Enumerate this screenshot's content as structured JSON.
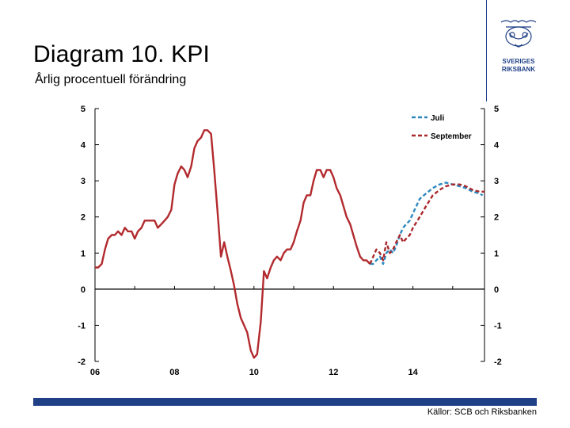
{
  "header": {
    "title": "Diagram 10. KPI",
    "subtitle": "Årlig procentuell förändring"
  },
  "logo": {
    "line1": "SVERIGES",
    "line2": "RIKSBANK"
  },
  "footer": {
    "source": "Källor: SCB och Riksbanken"
  },
  "colors": {
    "brand": "#1f3f86",
    "outcome": "#b22a2e",
    "forecast_juli": "#2e88c0",
    "forecast_september": "#a8282b"
  },
  "chart_data": {
    "type": "line",
    "x_ticks": [
      "06",
      "08",
      "10",
      "12",
      "14"
    ],
    "y_ticks_left": [
      "5",
      "4",
      "3",
      "2",
      "1",
      "0",
      "-1",
      "-2"
    ],
    "y_ticks_right": [
      "5",
      "4",
      "3",
      "2",
      "1",
      "0",
      "-1",
      "-2"
    ],
    "ylim": [
      -2,
      5
    ],
    "xlim": [
      2006.0,
      2015.8
    ],
    "grid": false,
    "legend_position": "top-right",
    "series": [
      {
        "name": "",
        "style": "solid",
        "color": "#b22a2e",
        "points": [
          [
            2006.0,
            0.6
          ],
          [
            2006.08,
            0.6
          ],
          [
            2006.17,
            0.7
          ],
          [
            2006.25,
            1.1
          ],
          [
            2006.33,
            1.4
          ],
          [
            2006.42,
            1.5
          ],
          [
            2006.5,
            1.5
          ],
          [
            2006.58,
            1.6
          ],
          [
            2006.67,
            1.5
          ],
          [
            2006.75,
            1.7
          ],
          [
            2006.83,
            1.6
          ],
          [
            2006.92,
            1.6
          ],
          [
            2007.0,
            1.4
          ],
          [
            2007.08,
            1.6
          ],
          [
            2007.17,
            1.7
          ],
          [
            2007.25,
            1.9
          ],
          [
            2007.33,
            1.9
          ],
          [
            2007.42,
            1.9
          ],
          [
            2007.5,
            1.9
          ],
          [
            2007.58,
            1.7
          ],
          [
            2007.67,
            1.8
          ],
          [
            2007.75,
            1.9
          ],
          [
            2007.83,
            2.0
          ],
          [
            2007.92,
            2.2
          ],
          [
            2008.0,
            2.9
          ],
          [
            2008.08,
            3.2
          ],
          [
            2008.17,
            3.4
          ],
          [
            2008.25,
            3.3
          ],
          [
            2008.33,
            3.1
          ],
          [
            2008.42,
            3.4
          ],
          [
            2008.5,
            3.9
          ],
          [
            2008.58,
            4.1
          ],
          [
            2008.67,
            4.2
          ],
          [
            2008.75,
            4.4
          ],
          [
            2008.83,
            4.4
          ],
          [
            2008.92,
            4.3
          ],
          [
            2009.0,
            3.3
          ],
          [
            2009.08,
            2.2
          ],
          [
            2009.17,
            0.9
          ],
          [
            2009.25,
            1.3
          ],
          [
            2009.33,
            0.9
          ],
          [
            2009.42,
            0.5
          ],
          [
            2009.5,
            0.1
          ],
          [
            2009.58,
            -0.4
          ],
          [
            2009.67,
            -0.8
          ],
          [
            2009.75,
            -1.0
          ],
          [
            2009.83,
            -1.2
          ],
          [
            2009.92,
            -1.7
          ],
          [
            2010.0,
            -1.9
          ],
          [
            2010.08,
            -1.8
          ],
          [
            2010.17,
            -0.9
          ],
          [
            2010.25,
            0.5
          ],
          [
            2010.33,
            0.3
          ],
          [
            2010.42,
            0.6
          ],
          [
            2010.5,
            0.8
          ],
          [
            2010.58,
            0.9
          ],
          [
            2010.67,
            0.8
          ],
          [
            2010.75,
            1.0
          ],
          [
            2010.83,
            1.1
          ],
          [
            2010.92,
            1.1
          ],
          [
            2011.0,
            1.3
          ],
          [
            2011.08,
            1.6
          ],
          [
            2011.17,
            1.9
          ],
          [
            2011.25,
            2.4
          ],
          [
            2011.33,
            2.6
          ],
          [
            2011.42,
            2.6
          ],
          [
            2011.5,
            3.0
          ],
          [
            2011.58,
            3.3
          ],
          [
            2011.67,
            3.3
          ],
          [
            2011.75,
            3.1
          ],
          [
            2011.83,
            3.3
          ],
          [
            2011.92,
            3.3
          ],
          [
            2012.0,
            3.1
          ],
          [
            2012.08,
            2.8
          ],
          [
            2012.17,
            2.6
          ],
          [
            2012.25,
            2.3
          ],
          [
            2012.33,
            2.0
          ],
          [
            2012.42,
            1.8
          ],
          [
            2012.5,
            1.5
          ],
          [
            2012.58,
            1.2
          ],
          [
            2012.67,
            0.9
          ],
          [
            2012.75,
            0.8
          ],
          [
            2012.83,
            0.8
          ],
          [
            2012.92,
            0.7
          ]
        ]
      },
      {
        "name": "Juli",
        "style": "dashed",
        "color": "#2e88c0",
        "points": [
          [
            2012.92,
            0.7
          ],
          [
            2013.0,
            0.7
          ],
          [
            2013.08,
            0.8
          ],
          [
            2013.17,
            0.9
          ],
          [
            2013.25,
            0.7
          ],
          [
            2013.33,
            1.0
          ],
          [
            2013.42,
            1.1
          ],
          [
            2013.5,
            1.0
          ],
          [
            2013.58,
            1.2
          ],
          [
            2013.67,
            1.5
          ],
          [
            2013.75,
            1.7
          ],
          [
            2013.83,
            1.8
          ],
          [
            2013.92,
            1.9
          ],
          [
            2014.0,
            2.1
          ],
          [
            2014.17,
            2.5
          ],
          [
            2014.33,
            2.65
          ],
          [
            2014.5,
            2.8
          ],
          [
            2014.67,
            2.9
          ],
          [
            2014.83,
            2.95
          ],
          [
            2015.0,
            2.9
          ],
          [
            2015.17,
            2.85
          ],
          [
            2015.33,
            2.8
          ],
          [
            2015.5,
            2.7
          ],
          [
            2015.67,
            2.65
          ],
          [
            2015.75,
            2.6
          ]
        ]
      },
      {
        "name": "September",
        "style": "dashed",
        "color": "#a8282b",
        "points": [
          [
            2012.92,
            0.7
          ],
          [
            2013.0,
            0.9
          ],
          [
            2013.08,
            1.1
          ],
          [
            2013.17,
            1.0
          ],
          [
            2013.25,
            0.8
          ],
          [
            2013.33,
            1.3
          ],
          [
            2013.42,
            1.0
          ],
          [
            2013.5,
            1.1
          ],
          [
            2013.58,
            1.3
          ],
          [
            2013.67,
            1.5
          ],
          [
            2013.75,
            1.3
          ],
          [
            2013.83,
            1.4
          ],
          [
            2013.92,
            1.5
          ],
          [
            2014.0,
            1.7
          ],
          [
            2014.17,
            2.0
          ],
          [
            2014.33,
            2.3
          ],
          [
            2014.5,
            2.6
          ],
          [
            2014.67,
            2.75
          ],
          [
            2014.83,
            2.85
          ],
          [
            2015.0,
            2.9
          ],
          [
            2015.17,
            2.9
          ],
          [
            2015.33,
            2.85
          ],
          [
            2015.5,
            2.75
          ],
          [
            2015.67,
            2.7
          ],
          [
            2015.8,
            2.7
          ]
        ]
      }
    ]
  }
}
